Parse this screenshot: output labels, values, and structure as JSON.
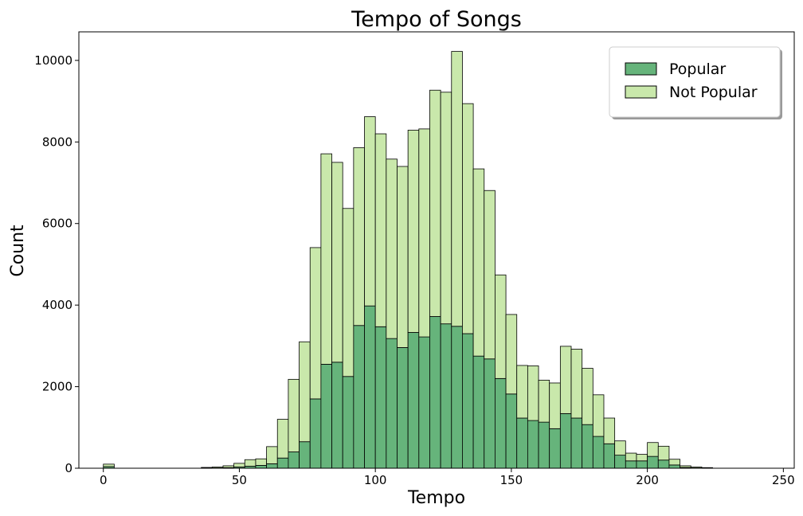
{
  "chart_data": {
    "type": "bar",
    "stacked": true,
    "title": "Tempo of Songs",
    "xlabel": "Tempo",
    "ylabel": "Count",
    "xlim": [
      -9,
      254
    ],
    "ylim": [
      0,
      10700
    ],
    "xticks": [
      0,
      50,
      100,
      150,
      200,
      250
    ],
    "yticks": [
      0,
      2000,
      4000,
      6000,
      8000,
      10000
    ],
    "bin_width": 4,
    "bin_starts": [
      0,
      4,
      8,
      12,
      16,
      20,
      24,
      28,
      32,
      36,
      40,
      44,
      48,
      52,
      56,
      60,
      64,
      68,
      72,
      76,
      80,
      84,
      88,
      92,
      96,
      100,
      104,
      108,
      112,
      116,
      120,
      124,
      128,
      132,
      136,
      140,
      144,
      148,
      152,
      156,
      160,
      164,
      168,
      172,
      176,
      180,
      184,
      188,
      192,
      196,
      200,
      204,
      208,
      212,
      216,
      220,
      224,
      228,
      232,
      236,
      240,
      244
    ],
    "grid": false,
    "legend_position": "top-right",
    "series": [
      {
        "name": "Popular",
        "color": "#66b47b",
        "values": [
          40,
          0,
          0,
          0,
          0,
          0,
          0,
          0,
          0,
          5,
          8,
          15,
          30,
          50,
          70,
          110,
          250,
          400,
          650,
          1700,
          2550,
          2600,
          2250,
          3500,
          3980,
          3470,
          3180,
          2960,
          3330,
          3220,
          3720,
          3540,
          3480,
          3300,
          2750,
          2680,
          2200,
          1820,
          1230,
          1170,
          1130,
          970,
          1340,
          1230,
          1070,
          780,
          600,
          320,
          180,
          180,
          290,
          200,
          80,
          20,
          8,
          3,
          0,
          0,
          0,
          0,
          0,
          0
        ]
      },
      {
        "name": "Not Popular",
        "color": "#c9e8ab",
        "values": [
          60,
          0,
          0,
          0,
          0,
          0,
          0,
          0,
          0,
          15,
          22,
          45,
          90,
          160,
          160,
          420,
          950,
          1780,
          2450,
          3710,
          5160,
          4900,
          4120,
          4360,
          4640,
          4730,
          4400,
          4440,
          4960,
          5100,
          5550,
          5680,
          6740,
          5640,
          4590,
          4130,
          2540,
          1950,
          1290,
          1340,
          1030,
          1120,
          1650,
          1690,
          1380,
          1020,
          630,
          350,
          190,
          160,
          340,
          340,
          140,
          40,
          22,
          12,
          0,
          0,
          0,
          0,
          0,
          0
        ]
      }
    ]
  },
  "colors": {
    "popular": "#66b47b",
    "not_popular": "#c9e8ab",
    "edge": "#000000"
  }
}
